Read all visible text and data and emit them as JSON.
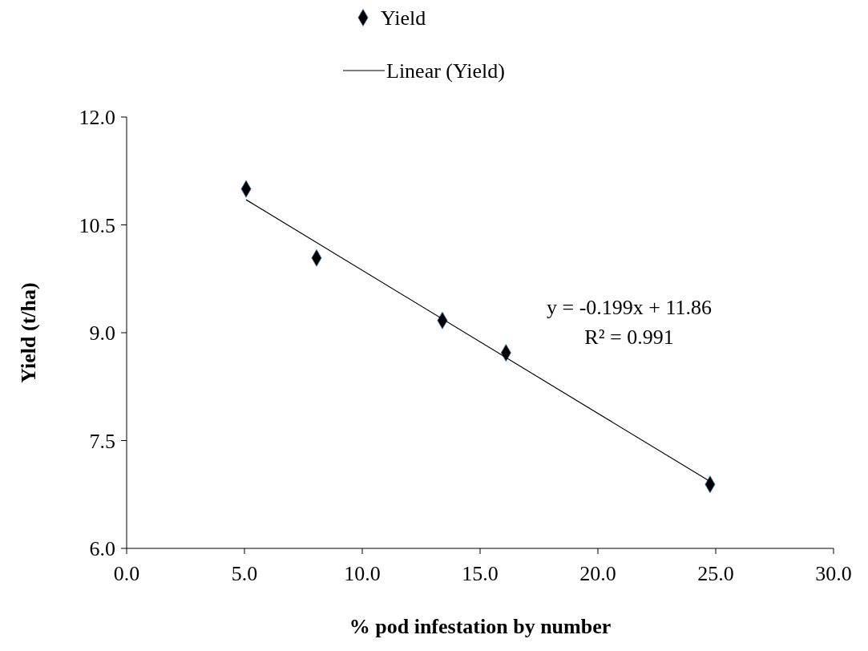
{
  "chart_data": {
    "type": "scatter",
    "xlabel": "% pod infestation by number",
    "ylabel": "Yield (t/ha)",
    "xlim": [
      0,
      30
    ],
    "xticks": [
      {
        "value": 0,
        "label": "0.0"
      },
      {
        "value": 5,
        "label": "5.0"
      },
      {
        "value": 10,
        "label": "10.0"
      },
      {
        "value": 15,
        "label": "15.0"
      },
      {
        "value": 20,
        "label": "20.0"
      },
      {
        "value": 25,
        "label": "25.0"
      },
      {
        "value": 30,
        "label": "30.0"
      }
    ],
    "ylim": [
      6,
      12
    ],
    "yticks": [
      {
        "value": 6,
        "label": "6.0"
      },
      {
        "value": 7.5,
        "label": "7.5"
      },
      {
        "value": 9,
        "label": "9.0"
      },
      {
        "value": 10.5,
        "label": "10.5"
      },
      {
        "value": 12,
        "label": "12.0"
      }
    ],
    "legend": "top",
    "grid": false,
    "series": [
      {
        "name": "Yield",
        "marker": "diamond",
        "color": "#000000",
        "x": [
          5.07,
          8.06,
          13.4,
          16.1,
          24.76
        ],
        "values": [
          11.0,
          10.04,
          9.17,
          8.72,
          6.89
        ]
      },
      {
        "name": "Linear (Yield)",
        "type": "line",
        "marker": "none",
        "line_style": "solid",
        "color": "#000000",
        "x": [
          5.07,
          24.76
        ],
        "values": [
          10.85,
          6.93
        ]
      }
    ],
    "annotations": [
      "y = -0.199x + 11.86",
      "R² = 0.991"
    ]
  }
}
